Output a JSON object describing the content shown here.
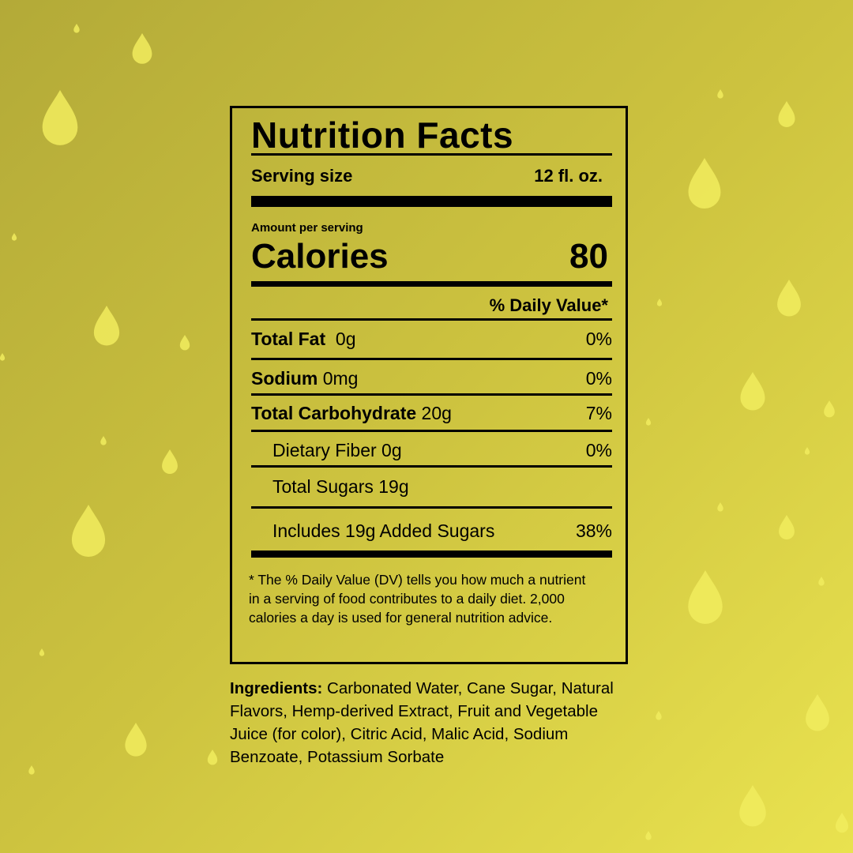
{
  "label": {
    "title": "Nutrition Facts",
    "serving_size": {
      "label": "Serving size",
      "value": "12 fl. oz."
    },
    "amount_per_serving": "Amount per serving",
    "calories": {
      "label": "Calories",
      "value": "80"
    },
    "daily_value_header": "% Daily Value*",
    "rows": [
      {
        "name": "Total Fat",
        "amount": "0g",
        "dv": "0%"
      },
      {
        "name": "Sodium",
        "amount": "0mg",
        "dv": "0%"
      },
      {
        "name": "Total Carbohydrate",
        "amount": "20g",
        "dv": "7%"
      },
      {
        "name": "Dietary Fiber",
        "amount": "0g",
        "dv": "0%"
      },
      {
        "name": "Total Sugars",
        "amount": "19g"
      },
      {
        "name": "Includes 19g Added Sugars",
        "dv": "38%"
      }
    ],
    "footnote": "* The % Daily Value (DV) tells you how much a nutrient in a serving of food contributes to a daily diet. 2,000 calories a day is used for general nutrition advice."
  },
  "ingredients": {
    "label": "Ingredients:",
    "text": "Carbonated Water, Cane Sugar, Natural Flavors, Hemp-derived Extract, Fruit and Vegetable Juice (for color), Citric Acid, Malic Acid, Sodium Benzoate, Potassium Sorbate"
  }
}
